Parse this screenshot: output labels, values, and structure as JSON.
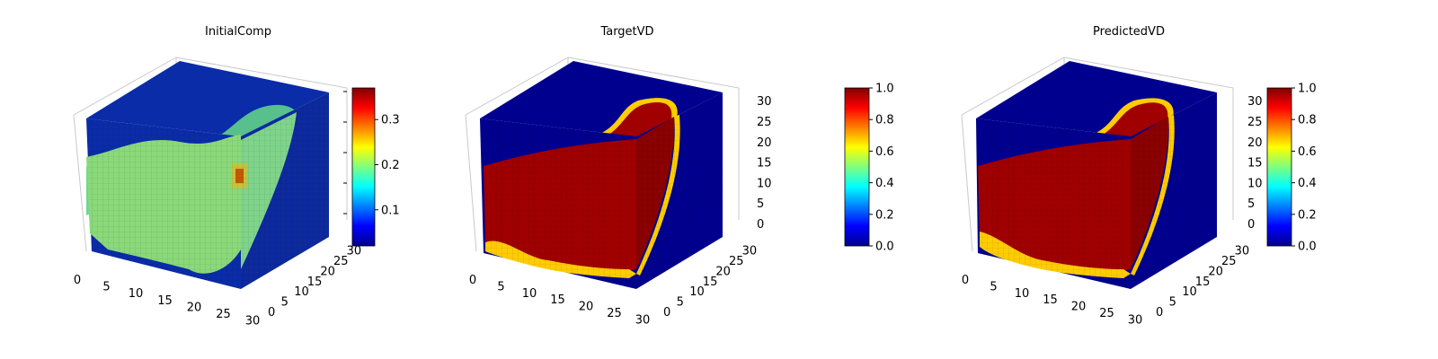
{
  "chart_data": [
    {
      "type": "heatmap",
      "subtype": "3d-voxel",
      "title": "InitialComp",
      "x_ticks": [
        "0",
        "5",
        "10",
        "15",
        "20",
        "25",
        "30"
      ],
      "y_ticks": [
        "0",
        "5",
        "10",
        "15",
        "20",
        "25",
        "30"
      ],
      "z_ticks": [],
      "colormap": "jet",
      "colorbar": {
        "range": [
          0.02,
          0.37
        ],
        "ticks": [
          "0.1",
          "0.2",
          "0.3"
        ],
        "tick_values": [
          0.1,
          0.2,
          0.3
        ]
      },
      "field": {
        "background": 0.03,
        "blob": 0.2,
        "hotspot": 0.36
      }
    },
    {
      "type": "heatmap",
      "subtype": "3d-voxel",
      "title": "TargetVD",
      "x_ticks": [
        "0",
        "5",
        "10",
        "15",
        "20",
        "25",
        "30"
      ],
      "y_ticks": [
        "0",
        "5",
        "10",
        "15",
        "20",
        "25",
        "30"
      ],
      "z_ticks": [
        "0",
        "5",
        "10",
        "15",
        "20",
        "25",
        "30"
      ],
      "colormap": "jet",
      "colorbar": {
        "range": [
          0.0,
          1.0
        ],
        "ticks": [
          "0.0",
          "0.2",
          "0.4",
          "0.6",
          "0.8",
          "1.0"
        ],
        "tick_values": [
          0,
          0.2,
          0.4,
          0.6,
          0.8,
          1.0
        ]
      },
      "field": {
        "background": 0.0,
        "blob": 1.0
      }
    },
    {
      "type": "heatmap",
      "subtype": "3d-voxel",
      "title": "PredictedVD",
      "x_ticks": [
        "0",
        "5",
        "10",
        "15",
        "20",
        "25",
        "30"
      ],
      "y_ticks": [
        "0",
        "5",
        "10",
        "15",
        "20",
        "25",
        "30"
      ],
      "z_ticks": [
        "0",
        "5",
        "10",
        "15",
        "20",
        "25",
        "30"
      ],
      "colormap": "jet",
      "colorbar": {
        "range": [
          0.0,
          1.0
        ],
        "ticks": [
          "0.0",
          "0.2",
          "0.4",
          "0.6",
          "0.8",
          "1.0"
        ],
        "tick_values": [
          0,
          0.2,
          0.4,
          0.6,
          0.8,
          1.0
        ]
      },
      "field": {
        "background": 0.0,
        "blob": 1.0
      }
    }
  ]
}
